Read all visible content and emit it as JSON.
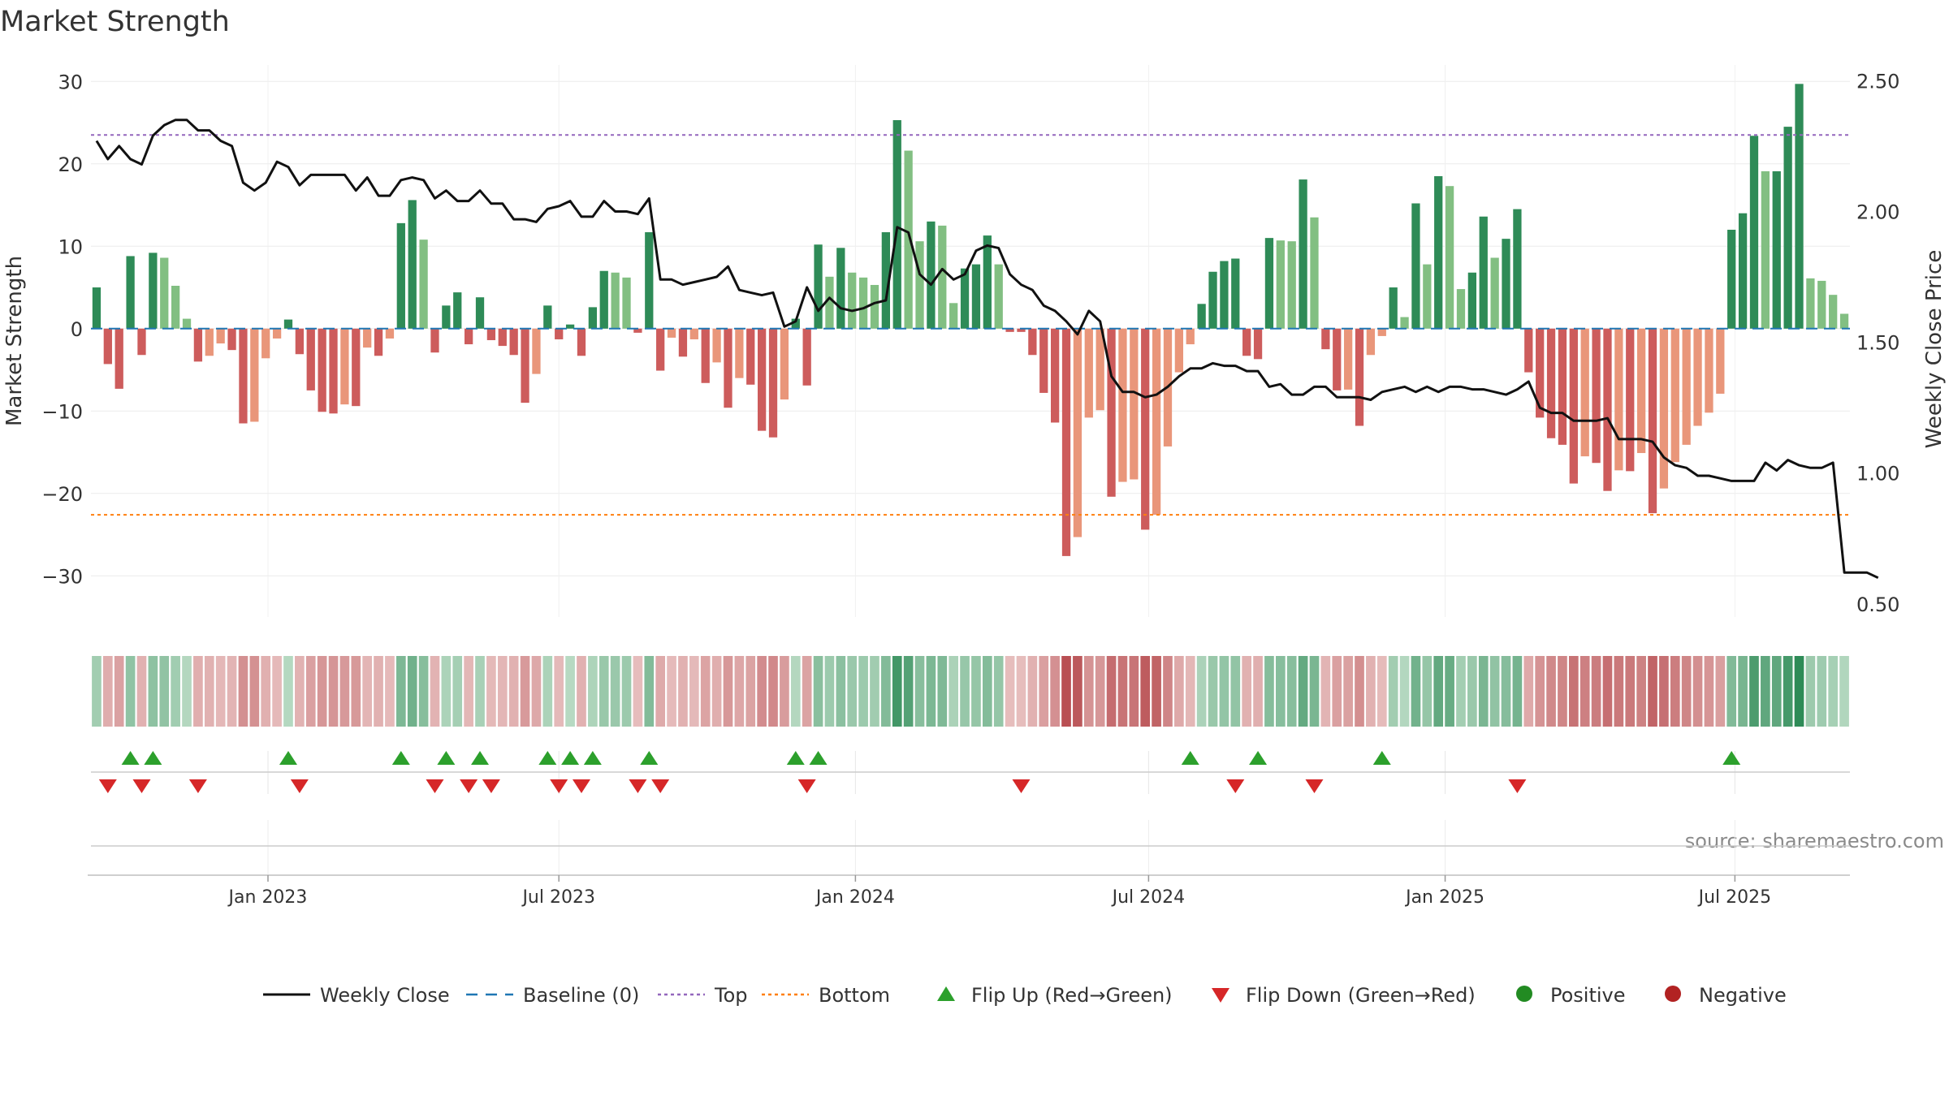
{
  "chart_data": {
    "type": "bar",
    "title": "Market Strength",
    "ylabel_left": "Market Strength",
    "ylabel_right": "Weekly Close Price",
    "source": "source: sharemaestro.com",
    "y_left_range": [
      -35,
      32
    ],
    "y_left_ticks": [
      30,
      20,
      10,
      0,
      -10,
      -20,
      -30
    ],
    "y_left_tick_labels": [
      "30",
      "20",
      "10",
      "0",
      "−10",
      "−20",
      "−30"
    ],
    "y_right_range": [
      0.45,
      2.56
    ],
    "y_right_ticks": [
      2.5,
      2.0,
      1.5,
      1.0,
      0.5
    ],
    "y_right_tick_labels": [
      "2.50",
      "2.00",
      "1.50",
      "1.00",
      "0.50"
    ],
    "x_ticks": [
      {
        "week": 15.2,
        "label": "Jan 2023"
      },
      {
        "week": 41.0,
        "label": "Jul 2023"
      },
      {
        "week": 67.3,
        "label": "Jan 2024"
      },
      {
        "week": 93.3,
        "label": "Jul 2024"
      },
      {
        "week": 119.6,
        "label": "Jan 2025"
      },
      {
        "week": 145.3,
        "label": "Jul 2025"
      }
    ],
    "top_threshold": 23.5,
    "bottom_threshold": -22.6,
    "baseline": 0,
    "strength": [
      5,
      -4.3,
      -7.3,
      8.8,
      -3.2,
      9.2,
      8.6,
      5.2,
      1.2,
      -4,
      -3.3,
      -1.8,
      -2.6,
      -11.5,
      -11.3,
      -3.6,
      -1.2,
      1.1,
      -3.1,
      -7.5,
      -10.1,
      -10.3,
      -9.2,
      -9.4,
      -2.3,
      -3.3,
      -1.2,
      12.8,
      15.6,
      10.8,
      -2.9,
      2.8,
      4.4,
      -1.9,
      3.8,
      -1.4,
      -2.1,
      -3.2,
      -9,
      -5.5,
      2.8,
      -1.3,
      0.5,
      -3.3,
      2.6,
      7,
      6.8,
      6.2,
      -0.5,
      11.7,
      -5.1,
      -1.1,
      -3.4,
      -1.3,
      -6.6,
      -4.1,
      -9.6,
      -6,
      -6.8,
      -12.4,
      -13.2,
      -8.6,
      1.2,
      -6.9,
      10.2,
      6.3,
      9.8,
      6.8,
      6.2,
      5.3,
      11.7,
      25.3,
      21.6,
      10.6,
      13,
      12.5,
      3.1,
      7.3,
      7.8,
      11.3,
      7.8,
      -0.4,
      -0.4,
      -3.2,
      -7.8,
      -11.4,
      -27.6,
      -25.3,
      -10.8,
      -9.9,
      -20.4,
      -18.6,
      -18.3,
      -24.4,
      -22.6,
      -14.3,
      -5.3,
      -1.9,
      3,
      6.9,
      8.2,
      8.5,
      -3.3,
      -3.7,
      11,
      10.7,
      10.6,
      18.1,
      13.5,
      -2.5,
      -7.5,
      -7.4,
      -11.8,
      -3.2,
      -0.9,
      5,
      1.4,
      15.2,
      7.8,
      18.5,
      17.3,
      4.8,
      6.8,
      13.6,
      8.6,
      10.9,
      14.5,
      -5.3,
      -10.8,
      -13.3,
      -14.1,
      -18.8,
      -15.5,
      -16.3,
      -19.7,
      -17.2,
      -17.3,
      -15.1,
      -22.4,
      -19.4,
      -16.2,
      -14.1,
      -11.8,
      -10.2,
      -7.9,
      12,
      14,
      23.4,
      19.1,
      19.1,
      24.5,
      29.7,
      6.1,
      5.8,
      4.1,
      1.8
    ],
    "weekly_close": [
      2.27,
      2.2,
      2.25,
      2.2,
      2.18,
      2.29,
      2.33,
      2.35,
      2.35,
      2.31,
      2.31,
      2.27,
      2.25,
      2.11,
      2.08,
      2.11,
      2.19,
      2.17,
      2.1,
      2.14,
      2.14,
      2.14,
      2.14,
      2.08,
      2.13,
      2.06,
      2.06,
      2.12,
      2.13,
      2.12,
      2.05,
      2.08,
      2.04,
      2.04,
      2.08,
      2.03,
      2.03,
      1.97,
      1.97,
      1.96,
      2.01,
      2.02,
      2.04,
      1.98,
      1.98,
      2.04,
      2,
      2,
      1.99,
      2.05,
      1.74,
      1.74,
      1.72,
      1.73,
      1.74,
      1.75,
      1.79,
      1.7,
      1.69,
      1.68,
      1.69,
      1.56,
      1.58,
      1.71,
      1.62,
      1.67,
      1.63,
      1.62,
      1.63,
      1.65,
      1.66,
      1.94,
      1.92,
      1.76,
      1.72,
      1.78,
      1.74,
      1.76,
      1.85,
      1.87,
      1.86,
      1.76,
      1.72,
      1.7,
      1.64,
      1.62,
      1.58,
      1.53,
      1.62,
      1.58,
      1.37,
      1.31,
      1.31,
      1.29,
      1.3,
      1.33,
      1.37,
      1.4,
      1.4,
      1.42,
      1.41,
      1.41,
      1.39,
      1.39,
      1.33,
      1.34,
      1.3,
      1.3,
      1.33,
      1.33,
      1.29,
      1.29,
      1.29,
      1.28,
      1.31,
      1.32,
      1.33,
      1.31,
      1.33,
      1.31,
      1.33,
      1.33,
      1.32,
      1.32,
      1.31,
      1.3,
      1.32,
      1.35,
      1.25,
      1.23,
      1.23,
      1.2,
      1.2,
      1.2,
      1.21,
      1.13,
      1.13,
      1.13,
      1.12,
      1.06,
      1.03,
      1.02,
      0.99,
      0.99,
      0.98,
      0.97,
      0.97,
      0.97,
      1.04,
      1.01,
      1.05,
      1.03,
      1.02,
      1.02,
      1.04,
      0.62,
      0.62,
      0.62,
      0.6
    ],
    "flip_up_weeks": [
      3,
      5,
      17,
      27,
      31,
      34,
      40,
      42,
      44,
      49,
      62,
      64,
      97,
      103,
      114,
      145
    ],
    "flip_down_weeks": [
      1,
      4,
      9,
      18,
      30,
      33,
      35,
      41,
      43,
      48,
      50,
      63,
      82,
      101,
      108,
      126
    ],
    "colors": {
      "strong_positive": "#2e8b57",
      "weak_positive": "#82bf82",
      "strong_negative": "#cd5c5c",
      "weak_negative": "#e9967a",
      "price_line": "#111111",
      "baseline": "#1f77b4",
      "top_line": "#9467bd",
      "bottom_line": "#ff7f0e",
      "flip_up": "#2ca02c",
      "flip_down": "#d62728",
      "positive_dot": "#228b22",
      "negative_dot": "#b22222"
    },
    "legend": [
      {
        "label": "Weekly Close",
        "symbol": "line",
        "color": "#111111"
      },
      {
        "label": "Baseline (0)",
        "symbol": "dash",
        "color": "#1f77b4"
      },
      {
        "label": "Top",
        "symbol": "dot",
        "color": "#9467bd"
      },
      {
        "label": "Bottom",
        "symbol": "dot",
        "color": "#ff7f0e"
      },
      {
        "label": "Flip Up (Red→Green)",
        "symbol": "tri-up",
        "color": "#2ca02c"
      },
      {
        "label": "Flip Down (Green→Red)",
        "symbol": "tri-down",
        "color": "#d62728"
      },
      {
        "label": "Positive",
        "symbol": "circle",
        "color": "#228b22"
      },
      {
        "label": "Negative",
        "symbol": "circle",
        "color": "#b22222"
      }
    ]
  }
}
